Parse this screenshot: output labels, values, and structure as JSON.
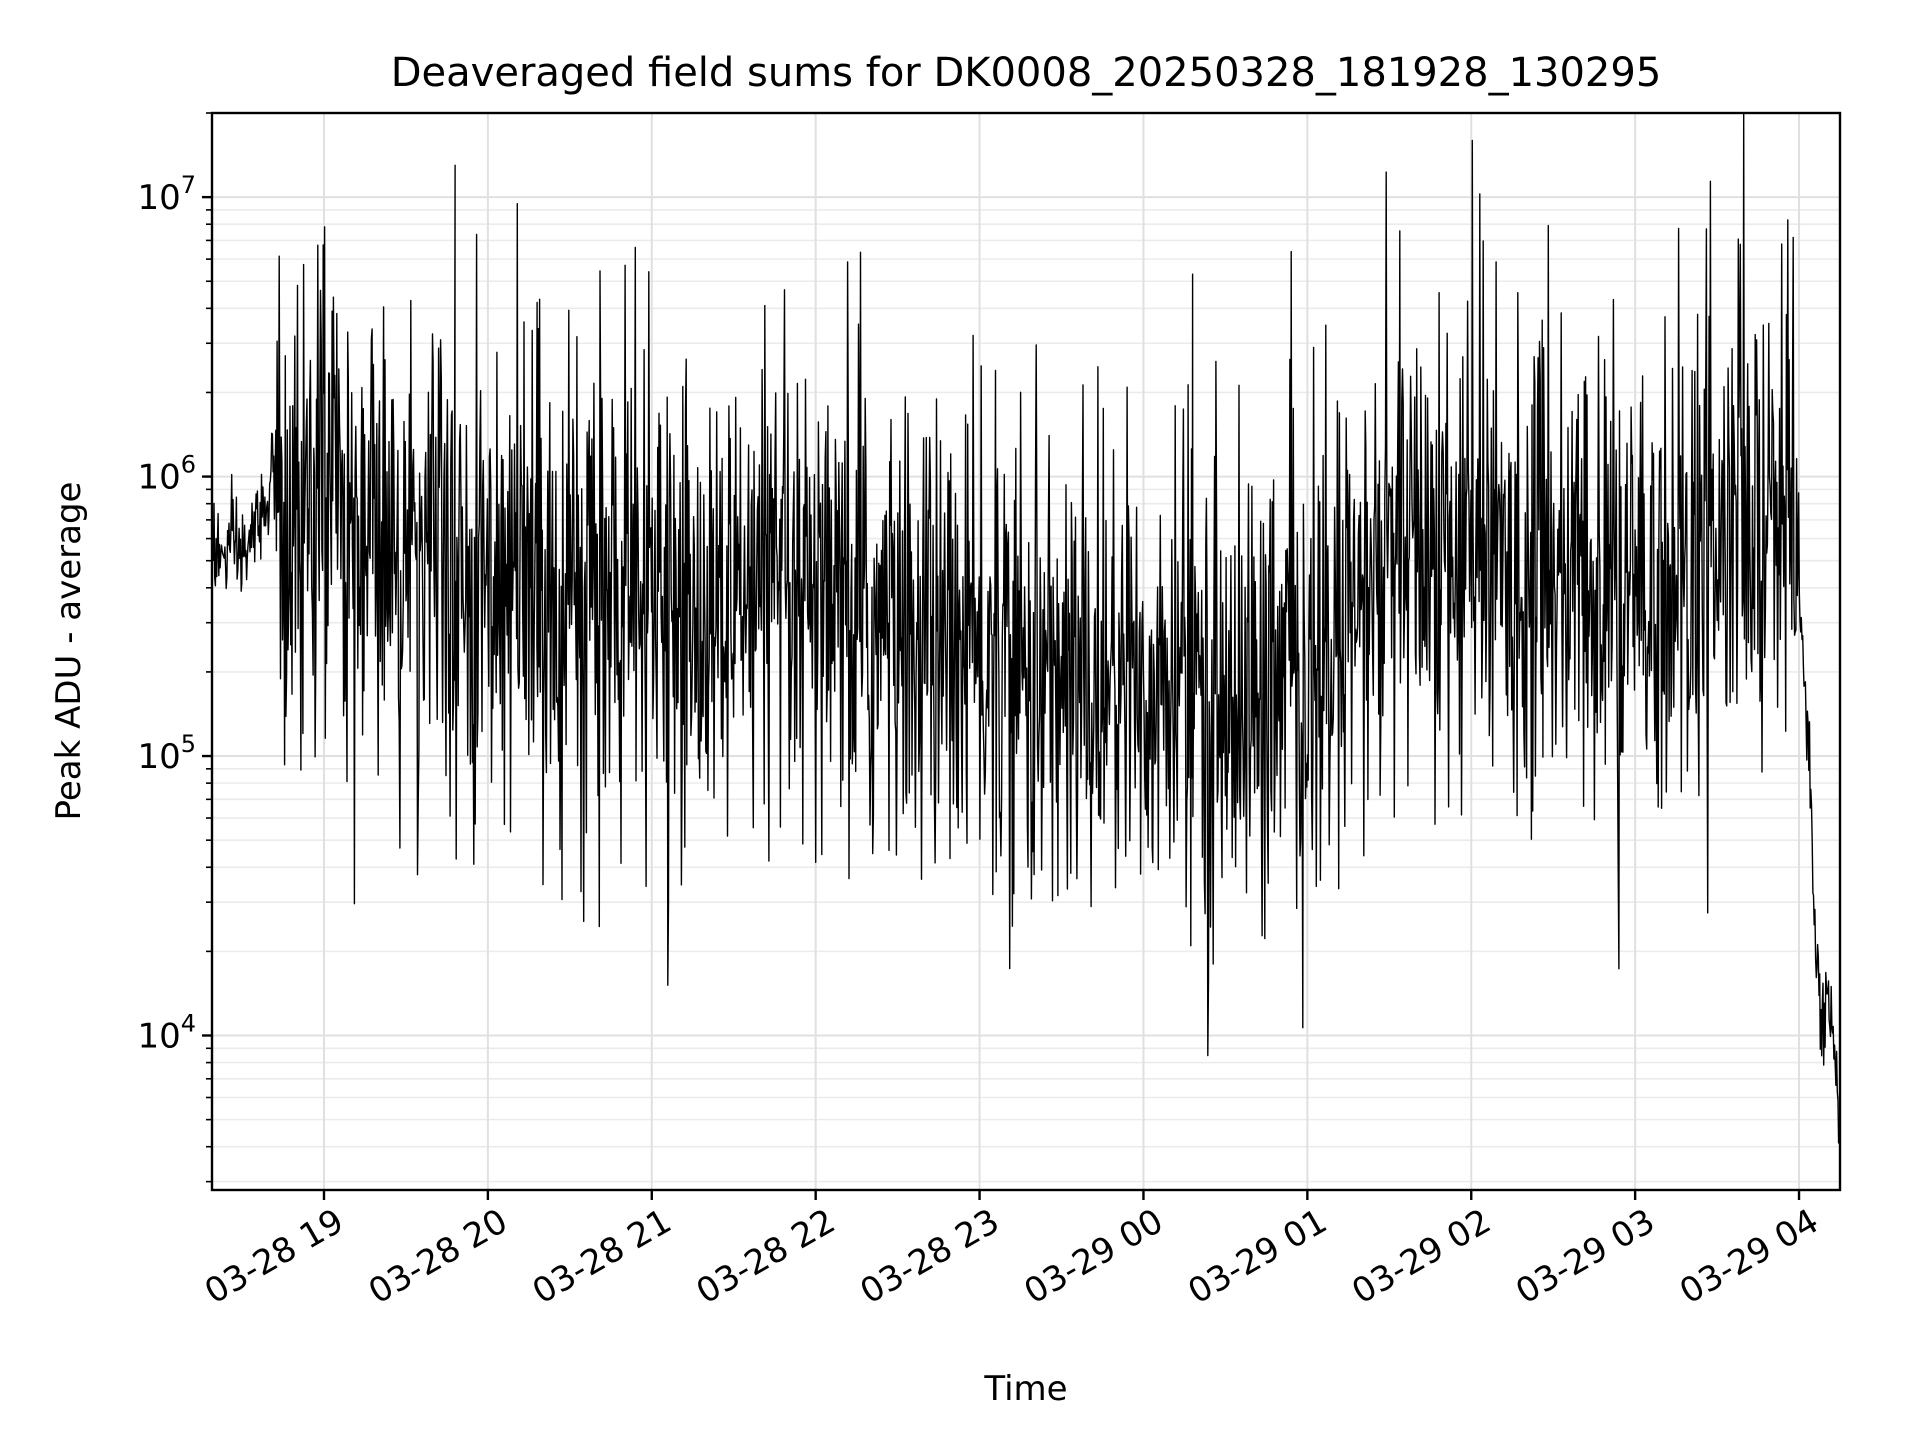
{
  "chart_data": {
    "type": "line",
    "title": "Deaveraged field sums for DK0008_20250328_181928_130295",
    "xlabel": "Time",
    "ylabel": "Peak ADU - average",
    "yscale": "log",
    "grid": true,
    "xlim": [
      "2025-03-28 18:19",
      "2025-03-29 04:15"
    ],
    "ylim": [
      2800,
      20000000
    ],
    "x_ticks": [
      {
        "value": "2025-03-28 19:00",
        "label": "03-28 19"
      },
      {
        "value": "2025-03-28 20:00",
        "label": "03-28 20"
      },
      {
        "value": "2025-03-28 21:00",
        "label": "03-28 21"
      },
      {
        "value": "2025-03-28 22:00",
        "label": "03-28 22"
      },
      {
        "value": "2025-03-28 23:00",
        "label": "03-28 23"
      },
      {
        "value": "2025-03-29 00:00",
        "label": "03-29 00"
      },
      {
        "value": "2025-03-29 01:00",
        "label": "03-29 01"
      },
      {
        "value": "2025-03-29 02:00",
        "label": "03-29 02"
      },
      {
        "value": "2025-03-29 03:00",
        "label": "03-29 03"
      },
      {
        "value": "2025-03-29 04:00",
        "label": "03-29 04"
      }
    ],
    "y_ticks": [
      {
        "value": 10000,
        "base": "10",
        "exp": "4"
      },
      {
        "value": 100000,
        "base": "10",
        "exp": "5"
      },
      {
        "value": 1000000,
        "base": "10",
        "exp": "6"
      },
      {
        "value": 10000000,
        "base": "10",
        "exp": "7"
      }
    ],
    "color": "#000000",
    "series": [
      {
        "points": [
          [
            "2025-03-28 18:19",
            600000
          ],
          [
            "2025-03-28 18:22",
            500000
          ],
          [
            "2025-03-28 18:26",
            550000
          ],
          [
            "2025-03-28 18:30",
            520000
          ],
          [
            "2025-03-28 18:34",
            600000
          ],
          [
            "2025-03-28 18:38",
            800000
          ],
          [
            "2025-03-28 18:42",
            1000000
          ],
          [
            "2025-03-28 18:43",
            2300000
          ],
          [
            "2025-03-28 18:44",
            400000
          ],
          [
            "2025-03-28 18:50",
            700000
          ],
          [
            "2025-03-28 19:00",
            800000
          ],
          [
            "2025-03-28 19:10",
            700000
          ],
          [
            "2025-03-28 19:20",
            600000
          ],
          [
            "2025-03-28 19:30",
            500000
          ],
          [
            "2025-03-28 19:40",
            450000
          ],
          [
            "2025-03-28 19:47",
            400000
          ],
          [
            "2025-03-28 19:48",
            13000000
          ],
          [
            "2025-03-28 19:49",
            400000
          ],
          [
            "2025-03-28 20:00",
            420000
          ],
          [
            "2025-03-28 20:17",
            350000
          ],
          [
            "2025-03-28 20:18",
            4200000
          ],
          [
            "2025-03-28 20:19",
            350000
          ],
          [
            "2025-03-28 20:30",
            330000
          ],
          [
            "2025-03-28 21:00",
            320000
          ],
          [
            "2025-03-28 21:30",
            300000
          ],
          [
            "2025-03-28 22:00",
            290000
          ],
          [
            "2025-03-28 22:30",
            270000
          ],
          [
            "2025-03-28 23:00",
            220000
          ],
          [
            "2025-03-28 23:30",
            180000
          ],
          [
            "2025-03-29 00:00",
            170000
          ],
          [
            "2025-03-29 00:17",
            160000
          ],
          [
            "2025-03-29 00:18",
            5300000
          ],
          [
            "2025-03-29 00:19",
            160000
          ],
          [
            "2025-03-29 00:30",
            150000
          ],
          [
            "2025-03-29 01:00",
            160000
          ],
          [
            "2025-03-29 01:20",
            350000
          ],
          [
            "2025-03-29 01:40",
            550000
          ],
          [
            "2025-03-29 02:00",
            500000
          ],
          [
            "2025-03-29 02:30",
            420000
          ],
          [
            "2025-03-29 03:00",
            320000
          ],
          [
            "2025-03-29 03:30",
            550000
          ],
          [
            "2025-03-29 03:58",
            700000
          ],
          [
            "2025-03-29 04:00",
            400000
          ],
          [
            "2025-03-29 04:04",
            100000
          ],
          [
            "2025-03-29 04:06",
            20000
          ],
          [
            "2025-03-29 04:08",
            11000
          ],
          [
            "2025-03-29 04:10",
            13000
          ],
          [
            "2025-03-29 04:12",
            12000
          ],
          [
            "2025-03-29 04:15",
            4500
          ]
        ]
      }
    ]
  }
}
